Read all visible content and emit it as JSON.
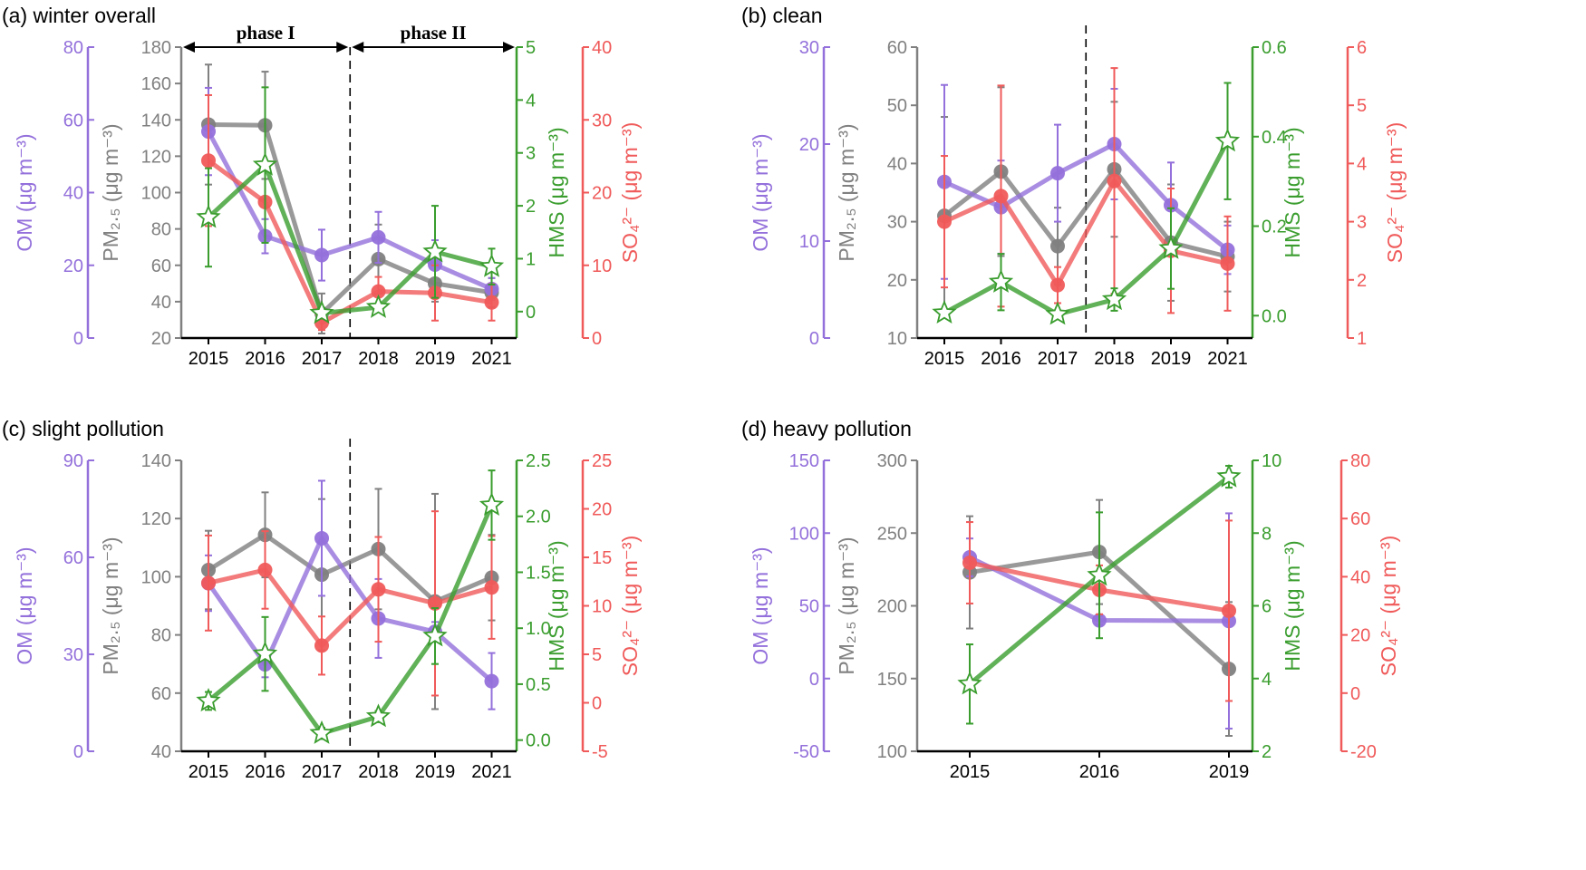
{
  "chart_data": [
    {
      "type": "line",
      "title": "(a) winter overall",
      "categories": [
        "2015",
        "2016",
        "2017",
        "2018",
        "2019",
        "2021"
      ],
      "divider_between": [
        "2017",
        "2018"
      ],
      "annotations": [
        {
          "text": "phase I",
          "span": [
            "2015",
            "2017"
          ]
        },
        {
          "text": "phase II",
          "span": [
            "2018",
            "2021"
          ]
        }
      ],
      "axes": {
        "OM": {
          "label": "OM (μg m⁻³)",
          "range": [
            0,
            80
          ],
          "ticks": [
            0,
            20,
            40,
            60,
            80
          ]
        },
        "PM": {
          "label": "PM₂.₅ (μg m⁻³)",
          "range": [
            20,
            180
          ],
          "ticks": [
            20,
            40,
            60,
            80,
            100,
            120,
            140,
            160,
            180
          ]
        },
        "HMS": {
          "label": "HMS (μg m⁻³)",
          "range": [
            -0.5,
            5
          ],
          "ticks": [
            0,
            1,
            2,
            3,
            4,
            5
          ]
        },
        "SO4": {
          "label": "SO₄²⁻ (μg m⁻³)",
          "range": [
            0,
            40
          ],
          "ticks": [
            0,
            10,
            20,
            30,
            40
          ]
        }
      },
      "series": [
        {
          "axis": "PM",
          "values": [
            137.4,
            137,
            33.5,
            63.4,
            50,
            45
          ],
          "errors": [
            33,
            29.5,
            11,
            19,
            10,
            8
          ]
        },
        {
          "axis": "OM",
          "values": [
            56.8,
            28,
            22.8,
            27.7,
            20.2,
            13.5
          ],
          "errors": [
            12,
            4.7,
            7,
            7,
            6.7,
            3
          ]
        },
        {
          "axis": "SO4",
          "values": [
            24.4,
            18.7,
            2.1,
            6.4,
            6.2,
            4.9
          ],
          "errors": [
            9,
            0,
            1,
            2,
            3.8,
            2.5
          ]
        },
        {
          "axis": "HMS",
          "values": [
            1.78,
            2.77,
            -0.03,
            0.08,
            1.13,
            0.85
          ],
          "errors": [
            0.93,
            1.47,
            0.1,
            0.05,
            0.87,
            0.34
          ]
        }
      ]
    },
    {
      "type": "line",
      "title": "(b) clean",
      "categories": [
        "2015",
        "2016",
        "2017",
        "2018",
        "2019",
        "2021"
      ],
      "divider_between": [
        "2017",
        "2018"
      ],
      "axes": {
        "OM": {
          "label": "OM (μg m⁻³)",
          "range": [
            0,
            30
          ],
          "ticks": [
            0,
            10,
            20,
            30
          ]
        },
        "PM": {
          "label": "PM₂.₅ (μg m⁻³)",
          "range": [
            10,
            60
          ],
          "ticks": [
            10,
            20,
            30,
            40,
            50,
            60
          ]
        },
        "HMS": {
          "label": "HMS (μg m⁻³)",
          "range": [
            -0.05,
            0.6
          ],
          "ticks": [
            "0.0",
            "0.2",
            "0.4",
            "0.6"
          ]
        },
        "SO4": {
          "label": "SO₄²⁻ (μg m⁻³)",
          "range": [
            1,
            6
          ],
          "ticks": [
            1,
            2,
            3,
            4,
            5,
            6
          ]
        }
      },
      "series": [
        {
          "axis": "PM",
          "values": [
            31,
            38.6,
            25.8,
            39,
            26.4,
            24
          ],
          "errors": [
            17,
            14.5,
            6.6,
            11.6,
            10,
            6
          ]
        },
        {
          "axis": "OM",
          "values": [
            16.1,
            13.5,
            17,
            20,
            13.7,
            9.1
          ],
          "errors": [
            10,
            4.8,
            5,
            5.7,
            4.4,
            2.5
          ]
        },
        {
          "axis": "SO4",
          "values": [
            3.0,
            3.44,
            1.91,
            3.7,
            2.5,
            2.28
          ],
          "errors": [
            1.13,
            1.9,
            0.31,
            1.94,
            1.07,
            0.81
          ]
        },
        {
          "axis": "HMS",
          "values": [
            0.006,
            0.075,
            0.003,
            0.036,
            0.15,
            0.39
          ],
          "errors": [
            0,
            0.063,
            0,
            0.025,
            0.09,
            0.13
          ]
        }
      ]
    },
    {
      "type": "line",
      "title": "(c) slight pollution",
      "categories": [
        "2015",
        "2016",
        "2017",
        "2018",
        "2019",
        "2021"
      ],
      "divider_between": [
        "2017",
        "2018"
      ],
      "axes": {
        "OM": {
          "label": "OM (μg m⁻³)",
          "range": [
            0,
            90
          ],
          "ticks": [
            0,
            30,
            60,
            90
          ]
        },
        "PM": {
          "label": "PM₂.₅ (μg m⁻³)",
          "range": [
            40,
            140
          ],
          "ticks": [
            40,
            60,
            80,
            100,
            120,
            140
          ]
        },
        "HMS": {
          "label": "HMS (μg m⁻³)",
          "range": [
            -0.1,
            2.5
          ],
          "ticks": [
            "0.0",
            "0.5",
            "1.0",
            "1.5",
            "2.0",
            "2.5"
          ]
        },
        "SO4": {
          "label": "SO₄²⁻ (μg m⁻³)",
          "range": [
            -5,
            25
          ],
          "ticks": [
            -5,
            0,
            5,
            10,
            15,
            20,
            25
          ]
        }
      },
      "series": [
        {
          "axis": "PM",
          "values": [
            102.3,
            114.4,
            100.7,
            109.5,
            91.5,
            99.7
          ],
          "errors": [
            13.5,
            14.6,
            26,
            20.7,
            37,
            14.7
          ]
        },
        {
          "axis": "OM",
          "values": [
            52,
            26.9,
            65.9,
            41.1,
            37,
            21.7
          ],
          "errors": [
            8.6,
            4,
            17.8,
            12.2,
            3,
            8.7
          ]
        },
        {
          "axis": "SO4",
          "values": [
            12.35,
            13.7,
            5.9,
            11.7,
            10.25,
            11.9
          ],
          "errors": [
            4.9,
            4,
            3,
            5.4,
            9.5,
            5.3
          ]
        },
        {
          "axis": "HMS",
          "values": [
            0.35,
            0.77,
            0.06,
            0.21,
            0.93,
            2.1
          ],
          "errors": [
            0.08,
            0.33,
            0.05,
            0.05,
            0.25,
            0.31
          ]
        }
      ]
    },
    {
      "type": "line",
      "title": "(d) heavy pollution",
      "categories": [
        "2015",
        "2016",
        "2019"
      ],
      "axes": {
        "OM": {
          "label": "OM (μg m⁻³)",
          "range": [
            -50,
            150
          ],
          "ticks": [
            -50,
            0,
            50,
            100,
            150
          ]
        },
        "PM": {
          "label": "PM₂.₅ (μg m⁻³)",
          "range": [
            100,
            300
          ],
          "ticks": [
            100,
            150,
            200,
            250,
            300
          ]
        },
        "HMS": {
          "label": "HMS (μg m⁻³)",
          "range": [
            2,
            10
          ],
          "ticks": [
            2,
            4,
            6,
            8,
            10
          ]
        },
        "SO4": {
          "label": "SO₄²⁻ (μg m⁻³)",
          "range": [
            -20,
            80
          ],
          "ticks": [
            -20,
            0,
            20,
            40,
            60,
            80
          ]
        }
      },
      "series": [
        {
          "axis": "PM",
          "values": [
            223,
            237,
            156.6
          ],
          "errors": [
            38.6,
            35.8,
            46
          ]
        },
        {
          "axis": "OM",
          "values": [
            83.3,
            40,
            39.6
          ],
          "errors": [
            13,
            3,
            74
          ]
        },
        {
          "axis": "SO4",
          "values": [
            44.8,
            35.5,
            28.3
          ],
          "errors": [
            14,
            8.4,
            31
          ]
        },
        {
          "axis": "HMS",
          "values": [
            3.85,
            6.84,
            9.55
          ],
          "errors": [
            1.09,
            1.73,
            0.3
          ]
        }
      ]
    }
  ],
  "colors": {
    "OM": "#9370db",
    "PM": "#808080",
    "HMS": "#3a9d2e",
    "SO4": "#f05a5a"
  },
  "markers": {
    "OM": "circle",
    "PM": "circle",
    "SO4": "circle",
    "HMS": "star-open"
  }
}
